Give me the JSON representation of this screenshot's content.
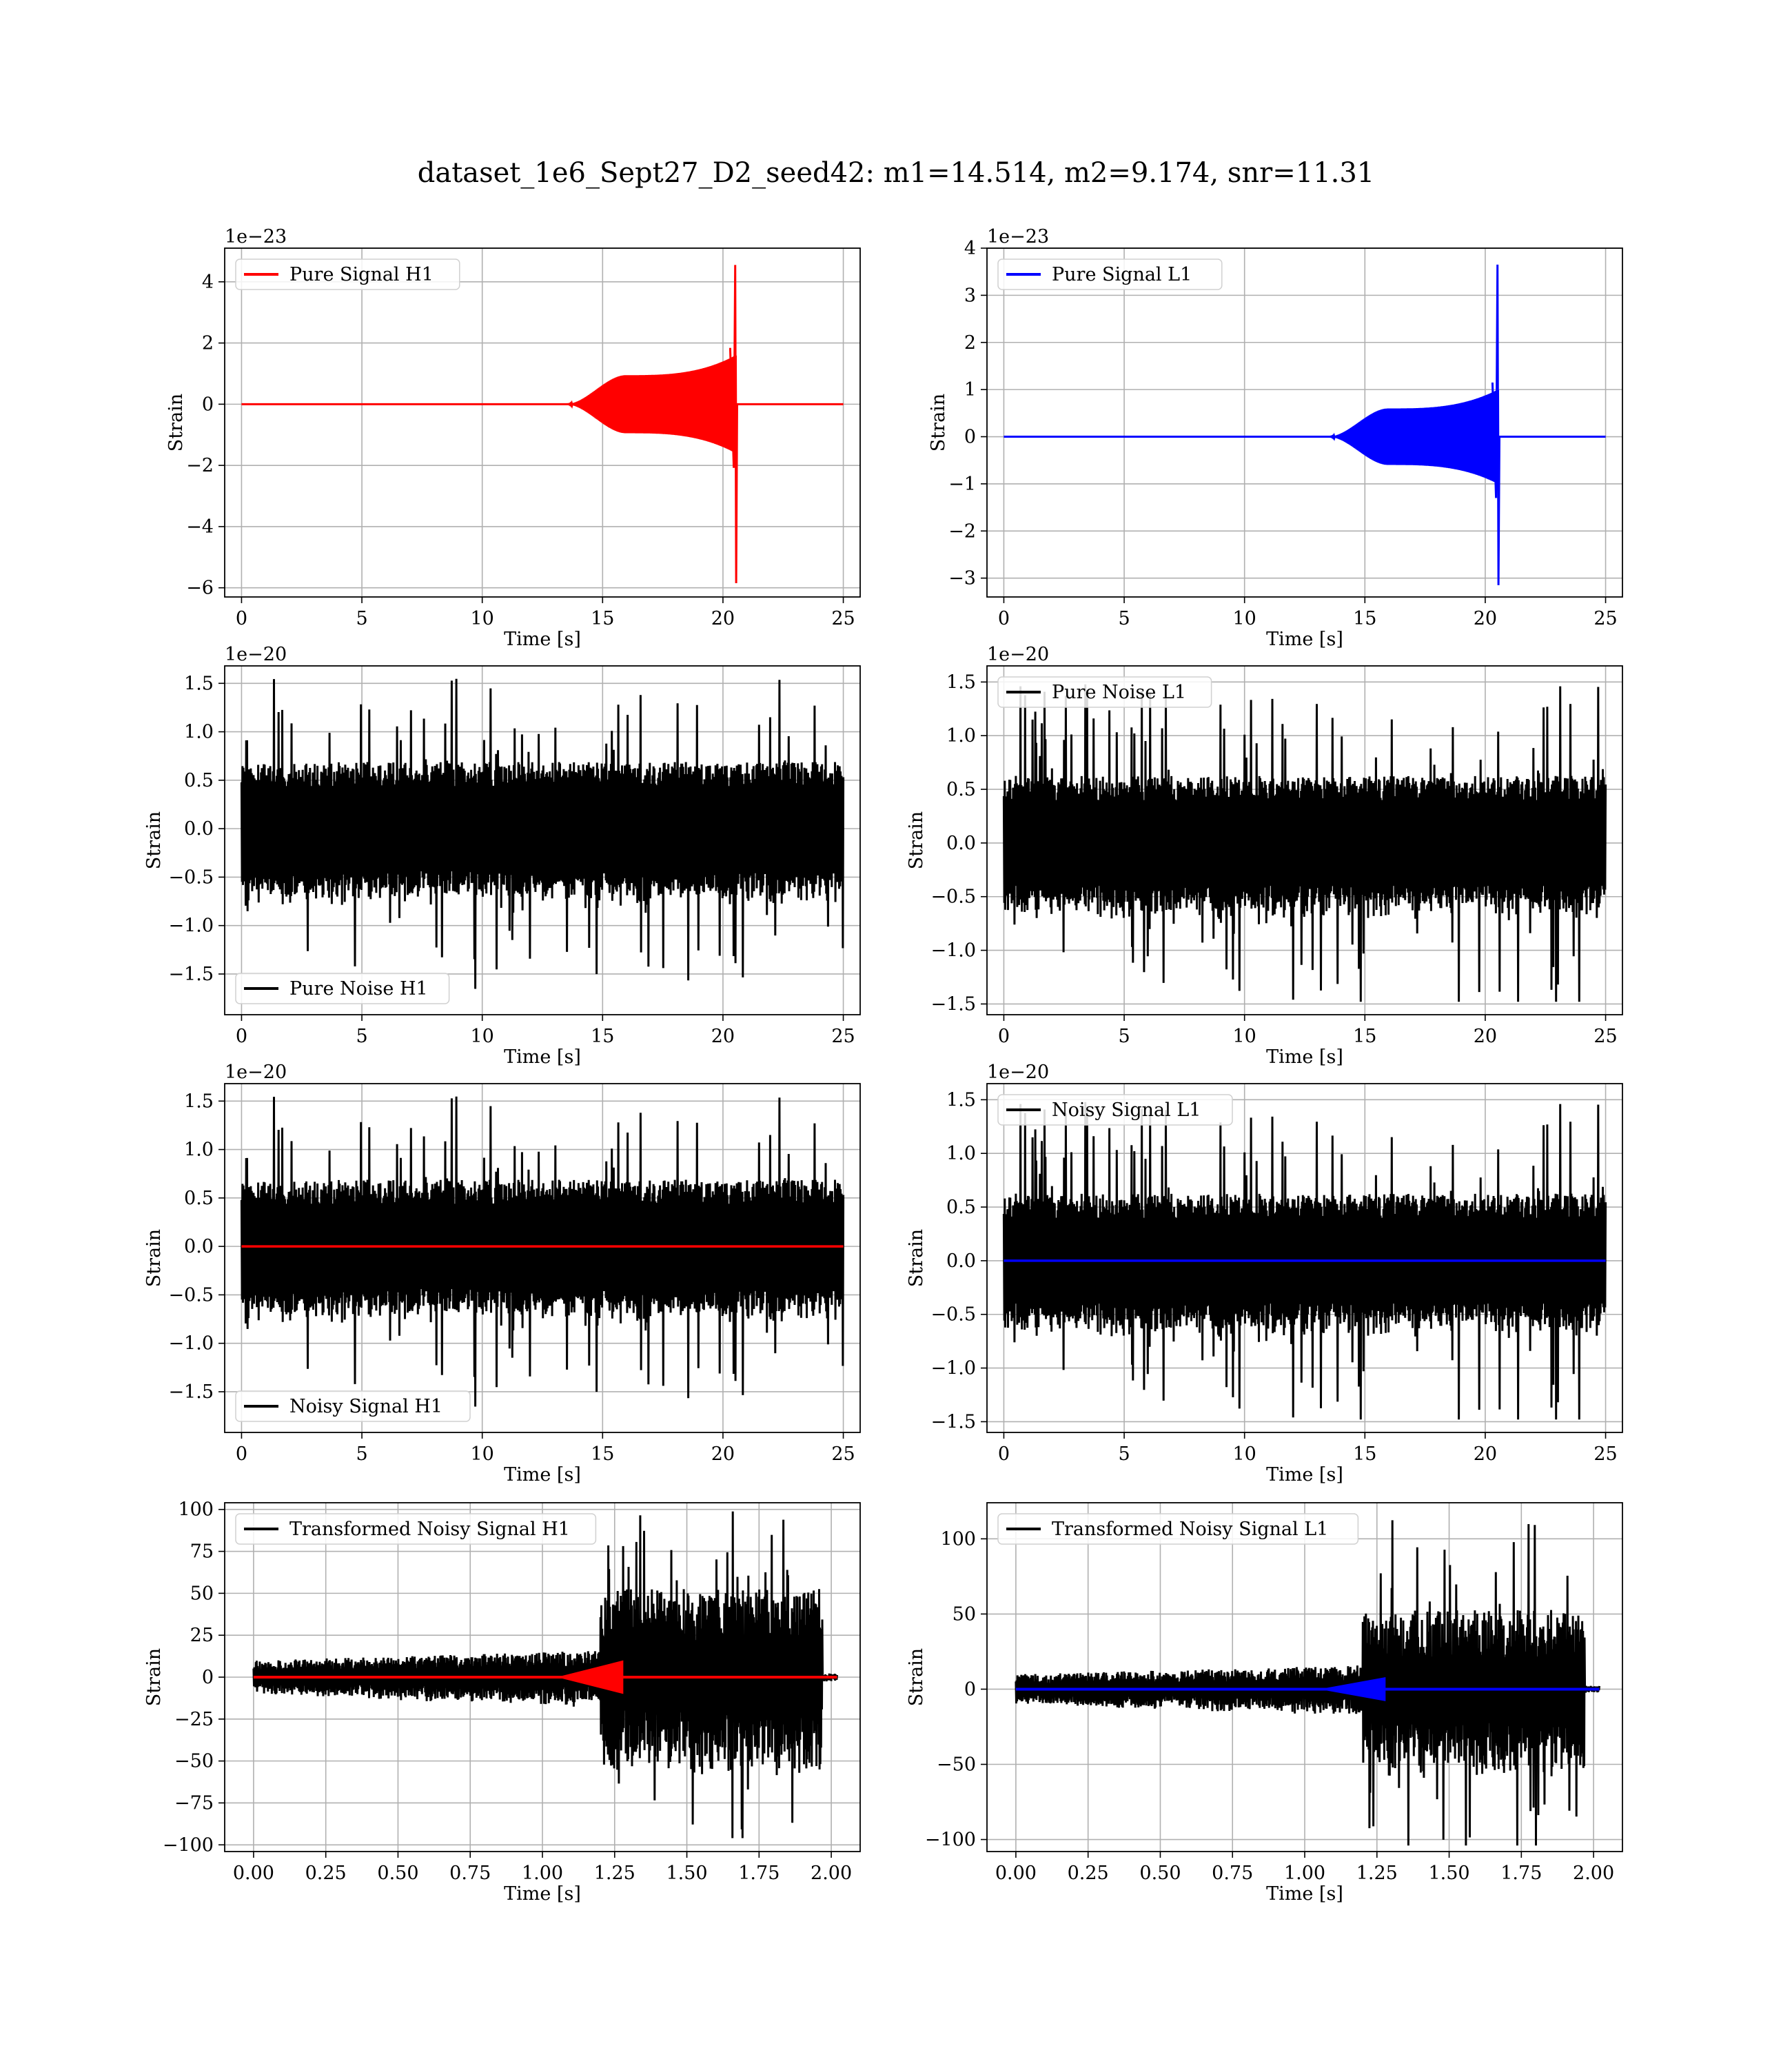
{
  "title": "dataset_1e6_Sept27_D2_seed42: m1=14.514, m2=9.174, snr=11.31",
  "colors": {
    "h1": "#ff0000",
    "l1": "#0000ff",
    "noise": "#000000",
    "grid": "#b0b0b0"
  },
  "chart_data": [
    {
      "id": "pure-signal-h1",
      "type": "line",
      "xlabel": "Time [s]",
      "ylabel": "Strain",
      "offset_text": "1e−23",
      "legend_position": "upper-left",
      "xlim": [
        -0.7,
        25.7
      ],
      "ylim": [
        -6.3,
        5.1
      ],
      "xticks": [
        0,
        5,
        10,
        15,
        20,
        25
      ],
      "xtick_labels": [
        "0",
        "5",
        "10",
        "15",
        "20",
        "25"
      ],
      "yticks": [
        -6,
        -4,
        -2,
        0,
        2,
        4
      ],
      "ytick_labels": [
        "−6",
        "−4",
        "−2",
        "0",
        "2",
        "4"
      ],
      "series": [
        {
          "name": "Pure Signal H1",
          "color": "#ff0000",
          "kind": "chirp",
          "t_start": 0,
          "t_end": 25,
          "t_onset": 13.5,
          "t_plateau": 16,
          "t_merge": 20.55,
          "plateau_amp": 0.95,
          "pre_merge_amp": 1.6,
          "peak_pos": 4.55,
          "peak_neg": -5.85
        }
      ]
    },
    {
      "id": "pure-signal-l1",
      "type": "line",
      "xlabel": "Time [s]",
      "ylabel": "Strain",
      "offset_text": "1e−23",
      "legend_position": "upper-left",
      "xlim": [
        -0.7,
        25.7
      ],
      "ylim": [
        -3.4,
        4.0
      ],
      "xticks": [
        0,
        5,
        10,
        15,
        20,
        25
      ],
      "xtick_labels": [
        "0",
        "5",
        "10",
        "15",
        "20",
        "25"
      ],
      "yticks": [
        -3,
        -2,
        -1,
        0,
        1,
        2,
        3,
        4
      ],
      "ytick_labels": [
        "−3",
        "−2",
        "−1",
        "0",
        "1",
        "2",
        "3",
        "4"
      ],
      "series": [
        {
          "name": "Pure Signal L1",
          "color": "#0000ff",
          "kind": "chirp",
          "t_start": 0,
          "t_end": 25,
          "t_onset": 13.5,
          "t_plateau": 16,
          "t_merge": 20.55,
          "plateau_amp": 0.6,
          "pre_merge_amp": 1.0,
          "peak_pos": 3.65,
          "peak_neg": -3.15
        }
      ]
    },
    {
      "id": "pure-noise-h1",
      "type": "line",
      "xlabel": "Time [s]",
      "ylabel": "Strain",
      "offset_text": "1e−20",
      "legend_position": "lower-left",
      "xlim": [
        -0.7,
        25.7
      ],
      "ylim": [
        -1.92,
        1.68
      ],
      "xticks": [
        0,
        5,
        10,
        15,
        20,
        25
      ],
      "xtick_labels": [
        "0",
        "5",
        "10",
        "15",
        "20",
        "25"
      ],
      "yticks": [
        -1.5,
        -1.0,
        -0.5,
        0.0,
        0.5,
        1.0,
        1.5
      ],
      "ytick_labels": [
        "−1.5",
        "−1.0",
        "−0.5",
        "0.0",
        "0.5",
        "1.0",
        "1.5"
      ],
      "series": [
        {
          "name": "Pure Noise H1",
          "color": "#000000",
          "kind": "noise",
          "t_start": 0,
          "t_end": 25,
          "base_amp": 0.55,
          "peak_max": 1.55,
          "peak_min": -1.75,
          "seed": 11
        }
      ]
    },
    {
      "id": "pure-noise-l1",
      "type": "line",
      "xlabel": "Time [s]",
      "ylabel": "Strain",
      "offset_text": "1e−20",
      "legend_position": "upper-left",
      "xlim": [
        -0.7,
        25.7
      ],
      "ylim": [
        -1.6,
        1.65
      ],
      "xticks": [
        0,
        5,
        10,
        15,
        20,
        25
      ],
      "xtick_labels": [
        "0",
        "5",
        "10",
        "15",
        "20",
        "25"
      ],
      "yticks": [
        -1.5,
        -1.0,
        -0.5,
        0.0,
        0.5,
        1.0,
        1.5
      ],
      "ytick_labels": [
        "−1.5",
        "−1.0",
        "−0.5",
        "0.0",
        "0.5",
        "1.0",
        "1.5"
      ],
      "series": [
        {
          "name": "Pure Noise L1",
          "color": "#000000",
          "kind": "noise",
          "t_start": 0,
          "t_end": 25,
          "base_amp": 0.5,
          "peak_max": 1.53,
          "peak_min": -1.48,
          "seed": 23
        }
      ]
    },
    {
      "id": "noisy-signal-h1",
      "type": "line",
      "xlabel": "Time [s]",
      "ylabel": "Strain",
      "offset_text": "1e−20",
      "legend_position": "lower-left",
      "xlim": [
        -0.7,
        25.7
      ],
      "ylim": [
        -1.92,
        1.68
      ],
      "xticks": [
        0,
        5,
        10,
        15,
        20,
        25
      ],
      "xtick_labels": [
        "0",
        "5",
        "10",
        "15",
        "20",
        "25"
      ],
      "yticks": [
        -1.5,
        -1.0,
        -0.5,
        0.0,
        0.5,
        1.0,
        1.5
      ],
      "ytick_labels": [
        "−1.5",
        "−1.0",
        "−0.5",
        "0.0",
        "0.5",
        "1.0",
        "1.5"
      ],
      "series": [
        {
          "name": "Noisy Signal H1",
          "color": "#000000",
          "kind": "noise",
          "t_start": 0,
          "t_end": 25,
          "base_amp": 0.55,
          "peak_max": 1.55,
          "peak_min": -1.75,
          "seed": 11
        },
        {
          "name": "",
          "color": "#ff0000",
          "kind": "flat",
          "t_start": 0,
          "t_end": 25,
          "value": 0
        }
      ]
    },
    {
      "id": "noisy-signal-l1",
      "type": "line",
      "xlabel": "Time [s]",
      "ylabel": "Strain",
      "offset_text": "1e−20",
      "legend_position": "upper-left",
      "xlim": [
        -0.7,
        25.7
      ],
      "ylim": [
        -1.6,
        1.65
      ],
      "xticks": [
        0,
        5,
        10,
        15,
        20,
        25
      ],
      "xtick_labels": [
        "0",
        "5",
        "10",
        "15",
        "20",
        "25"
      ],
      "yticks": [
        -1.5,
        -1.0,
        -0.5,
        0.0,
        0.5,
        1.0,
        1.5
      ],
      "ytick_labels": [
        "−1.5",
        "−1.0",
        "−0.5",
        "0.0",
        "0.5",
        "1.0",
        "1.5"
      ],
      "series": [
        {
          "name": "Noisy Signal L1",
          "color": "#000000",
          "kind": "noise",
          "t_start": 0,
          "t_end": 25,
          "base_amp": 0.5,
          "peak_max": 1.53,
          "peak_min": -1.48,
          "seed": 23
        },
        {
          "name": "",
          "color": "#0000ff",
          "kind": "flat",
          "t_start": 0,
          "t_end": 25,
          "value": 0
        }
      ]
    },
    {
      "id": "transformed-noisy-signal-h1",
      "type": "line",
      "xlabel": "Time [s]",
      "ylabel": "Strain",
      "offset_text": "",
      "legend_position": "upper-left",
      "xlim": [
        -0.1,
        2.1
      ],
      "ylim": [
        -104,
        104
      ],
      "xticks": [
        0,
        0.25,
        0.5,
        0.75,
        1.0,
        1.25,
        1.5,
        1.75,
        2.0
      ],
      "xtick_labels": [
        "0.00",
        "0.25",
        "0.50",
        "0.75",
        "1.00",
        "1.25",
        "1.50",
        "1.75",
        "2.00"
      ],
      "yticks": [
        -100,
        -75,
        -50,
        -25,
        0,
        25,
        50,
        75,
        100
      ],
      "ytick_labels": [
        "−100",
        "−75",
        "−50",
        "−25",
        "0",
        "25",
        "50",
        "75",
        "100"
      ],
      "series": [
        {
          "name": "Transformed Noisy Signal H1",
          "color": "#000000",
          "kind": "whitened",
          "t_start": 0,
          "t_end": 2.02,
          "pre_amp": 9,
          "t_rise": 1.2,
          "post_amp": 48,
          "peak_max": 99,
          "peak_min": -96,
          "t_stop": 1.97,
          "seed": 5
        },
        {
          "name": "",
          "color": "#ff0000",
          "kind": "whitened-chirp",
          "t_start": 0,
          "t_end": 2.02,
          "t_onset": 1.05,
          "t_merge": 1.28,
          "peak": 10
        }
      ]
    },
    {
      "id": "transformed-noisy-signal-l1",
      "type": "line",
      "xlabel": "Time [s]",
      "ylabel": "Strain",
      "offset_text": "",
      "legend_position": "upper-left",
      "xlim": [
        -0.1,
        2.1
      ],
      "ylim": [
        -108,
        124
      ],
      "xticks": [
        0,
        0.25,
        0.5,
        0.75,
        1.0,
        1.25,
        1.5,
        1.75,
        2.0
      ],
      "xtick_labels": [
        "0.00",
        "0.25",
        "0.50",
        "0.75",
        "1.00",
        "1.25",
        "1.50",
        "1.75",
        "2.00"
      ],
      "yticks": [
        -100,
        -50,
        0,
        50,
        100
      ],
      "ytick_labels": [
        "−100",
        "−50",
        "0",
        "50",
        "100"
      ],
      "series": [
        {
          "name": "Transformed Noisy Signal L1",
          "color": "#000000",
          "kind": "whitened",
          "t_start": 0,
          "t_end": 2.02,
          "pre_amp": 9,
          "t_rise": 1.2,
          "post_amp": 48,
          "peak_max": 115,
          "peak_min": -104,
          "t_stop": 1.97,
          "seed": 9
        },
        {
          "name": "",
          "color": "#0000ff",
          "kind": "whitened-chirp",
          "t_start": 0,
          "t_end": 2.02,
          "t_onset": 1.05,
          "t_merge": 1.28,
          "peak": 8
        }
      ]
    }
  ]
}
